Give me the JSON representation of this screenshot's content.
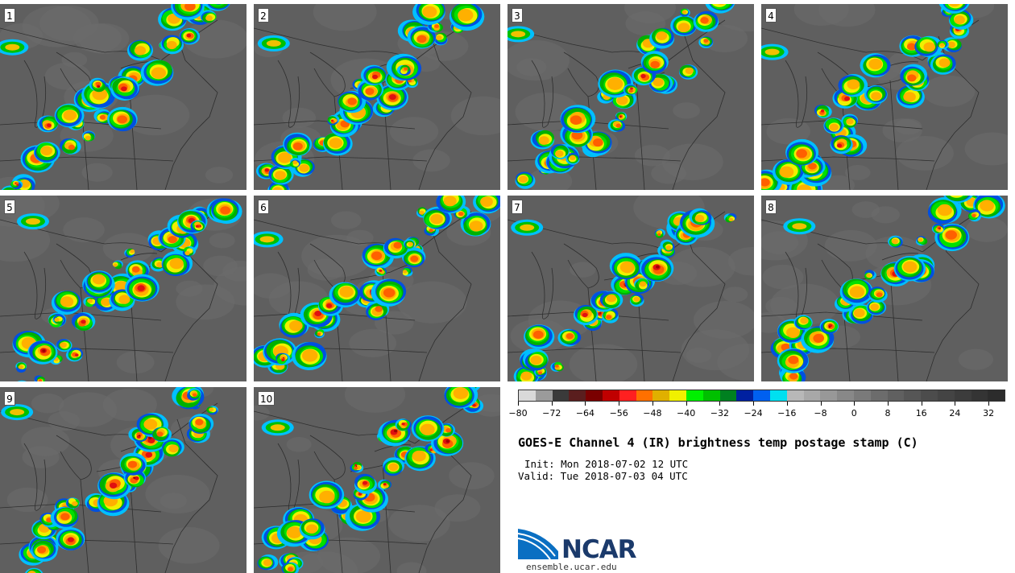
{
  "panels": [
    {
      "label": "1"
    },
    {
      "label": "2"
    },
    {
      "label": "3"
    },
    {
      "label": "4"
    },
    {
      "label": "5"
    },
    {
      "label": "6"
    },
    {
      "label": "7"
    },
    {
      "label": "8"
    },
    {
      "label": "9"
    },
    {
      "label": "10"
    }
  ],
  "colorbar": {
    "colors": [
      "#d9d9d9",
      "#9b9b9b",
      "#3a3a3a",
      "#5a1e1e",
      "#7a0000",
      "#c00000",
      "#ff2020",
      "#ff7000",
      "#e0b000",
      "#f0f000",
      "#00f000",
      "#00c000",
      "#008020",
      "#0020a0",
      "#0060f0",
      "#00e0f0",
      "#b8b8b8",
      "#a8a8a8",
      "#989898",
      "#888888",
      "#7a7a7a",
      "#6c6c6c",
      "#606060",
      "#565656",
      "#4c4c4c",
      "#444444",
      "#3c3c3c",
      "#343434",
      "#2c2c2c"
    ],
    "ticks": [
      "−80",
      "−72",
      "−64",
      "−56",
      "−48",
      "−40",
      "−32",
      "−24",
      "−16",
      "−8",
      "0",
      "8",
      "16",
      "24",
      "32"
    ]
  },
  "title": "GOES-E Channel 4 (IR) brightness temp postage stamp (C)",
  "init": "Init: Mon 2018-07-02 12 UTC",
  "valid": "Valid: Tue 2018-07-03 04 UTC",
  "logo": {
    "name": "NCAR",
    "url": "ensemble.ucar.edu"
  }
}
